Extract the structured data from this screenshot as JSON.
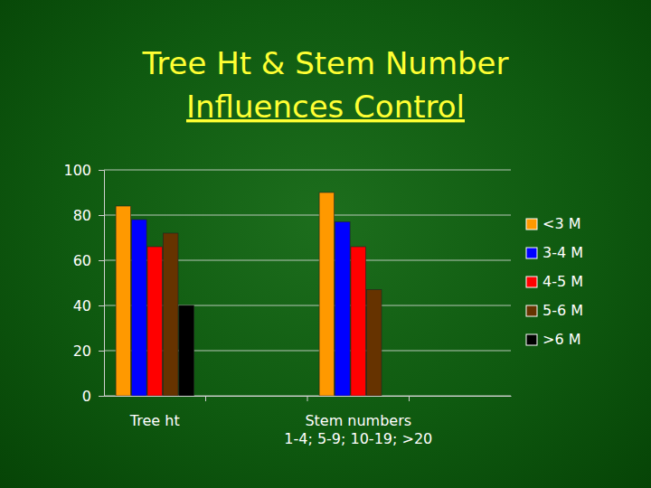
{
  "chart_data": {
    "type": "bar",
    "title": "Tree Ht & Stem Number",
    "subtitle": "Influences Control",
    "categories": [
      "Tree ht",
      null,
      "Stem numbers\n1-4; 5-9; 10-19; >20",
      null
    ],
    "series": [
      {
        "name": "<3 M",
        "color": "#ff9900",
        "values": [
          84,
          null,
          90,
          null
        ]
      },
      {
        "name": "3-4 M",
        "color": "#0000ff",
        "values": [
          78,
          null,
          77,
          null
        ]
      },
      {
        "name": "4-5 M",
        "color": "#ff0000",
        "values": [
          66,
          null,
          66,
          null
        ]
      },
      {
        "name": "5-6 M",
        "color": "#663300",
        "values": [
          72,
          null,
          47,
          null
        ]
      },
      {
        "name": ">6 M",
        "color": "#000000",
        "values": [
          40,
          null,
          null,
          null
        ]
      }
    ],
    "ylim": [
      0,
      100
    ],
    "yticks": [
      0,
      20,
      40,
      60,
      80,
      100
    ],
    "grid": true,
    "legend": "right"
  }
}
